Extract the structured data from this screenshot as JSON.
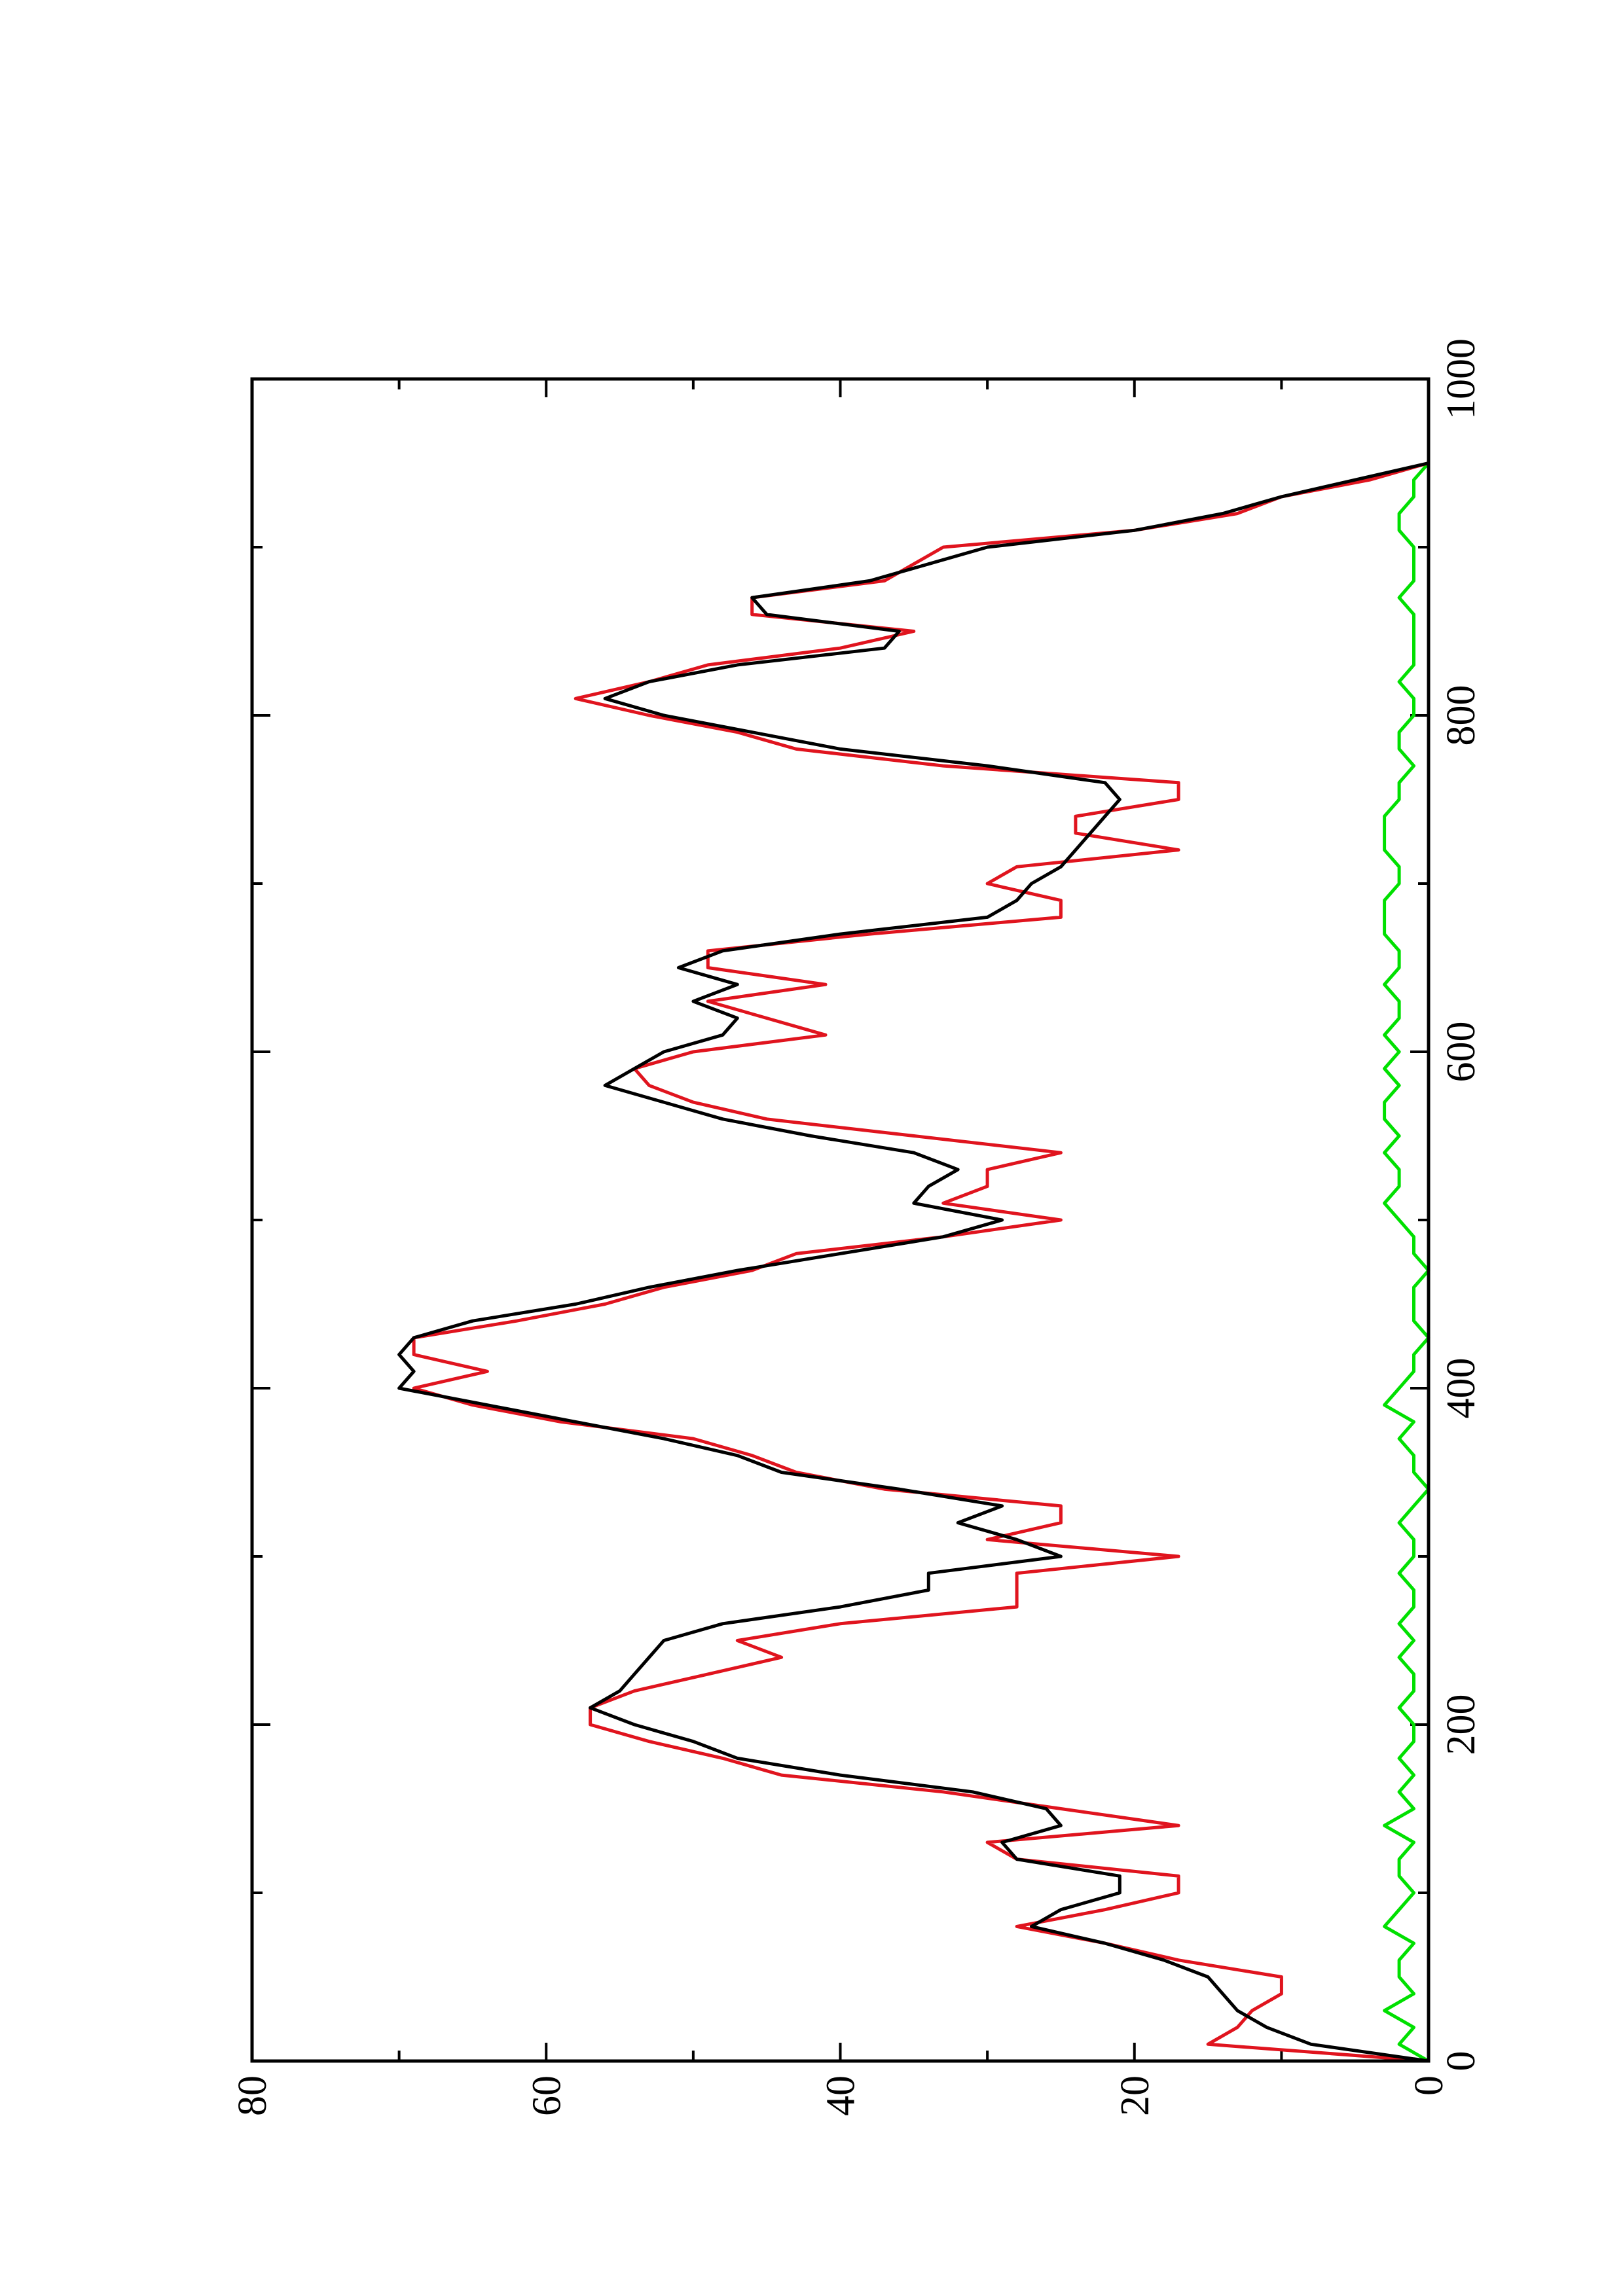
{
  "chart_data": {
    "type": "line",
    "x": [
      0,
      10,
      20,
      30,
      40,
      50,
      60,
      70,
      80,
      90,
      100,
      110,
      120,
      130,
      140,
      150,
      160,
      170,
      180,
      190,
      200,
      210,
      220,
      230,
      240,
      250,
      260,
      270,
      280,
      290,
      300,
      310,
      320,
      330,
      340,
      350,
      360,
      370,
      380,
      390,
      400,
      410,
      420,
      430,
      440,
      450,
      460,
      470,
      480,
      490,
      500,
      510,
      520,
      530,
      540,
      550,
      560,
      570,
      580,
      590,
      600,
      610,
      620,
      630,
      640,
      650,
      660,
      670,
      680,
      690,
      700,
      710,
      720,
      730,
      740,
      750,
      760,
      770,
      780,
      790,
      800,
      810,
      820,
      830,
      840,
      850,
      860,
      870,
      880,
      890,
      900,
      910,
      920,
      930,
      940,
      950
    ],
    "series": [
      {
        "color": "#000000",
        "values": [
          0,
          8,
          11,
          13,
          14,
          15,
          18,
          22,
          27,
          25,
          21,
          21,
          28,
          29,
          25,
          26,
          31,
          40,
          47,
          50,
          54,
          57,
          55,
          54,
          53,
          52,
          48,
          40,
          34,
          34,
          25,
          28,
          32,
          29,
          36,
          44,
          47,
          52,
          58,
          64,
          70,
          69,
          70,
          69,
          65,
          58,
          53,
          47,
          40,
          33,
          29,
          35,
          34,
          32,
          35,
          42,
          48,
          52,
          56,
          54,
          52,
          48,
          47,
          50,
          47,
          51,
          48,
          40,
          30,
          28,
          27,
          25,
          24,
          23,
          22,
          21,
          22,
          30,
          40,
          46,
          52,
          56,
          53,
          47,
          37,
          36,
          45,
          46,
          38,
          34,
          30,
          20,
          14,
          10,
          5,
          0
        ]
      },
      {
        "color": "#e0141e",
        "values": [
          0,
          15,
          13,
          12,
          10,
          10,
          17,
          22,
          28,
          22,
          17,
          17,
          28,
          30,
          17,
          25,
          33,
          44,
          48,
          53,
          57,
          57,
          54,
          49,
          44,
          47,
          40,
          28,
          28,
          28,
          17,
          30,
          25,
          25,
          37,
          43,
          46,
          50,
          59,
          65,
          69,
          64,
          69,
          69,
          62,
          56,
          52,
          46,
          43,
          33,
          25,
          33,
          30,
          30,
          25,
          35,
          45,
          50,
          53,
          54,
          50,
          41,
          45,
          49,
          41,
          49,
          49,
          38,
          25,
          25,
          30,
          28,
          17,
          24,
          24,
          17,
          17,
          33,
          43,
          47,
          53,
          58,
          53,
          49,
          40,
          35,
          46,
          46,
          37,
          35,
          33,
          20,
          13,
          10,
          4,
          0
        ]
      },
      {
        "color": "#00e000",
        "values": [
          0,
          2,
          1,
          3,
          1,
          2,
          2,
          1,
          3,
          2,
          1,
          2,
          2,
          1,
          3,
          1,
          2,
          1,
          2,
          1,
          1,
          2,
          1,
          1,
          2,
          1,
          2,
          1,
          1,
          2,
          1,
          1,
          2,
          1,
          0,
          1,
          1,
          2,
          1,
          3,
          2,
          1,
          1,
          0,
          1,
          1,
          1,
          0,
          1,
          1,
          2,
          3,
          2,
          2,
          3,
          2,
          3,
          3,
          2,
          3,
          2,
          3,
          2,
          2,
          3,
          2,
          2,
          3,
          3,
          3,
          2,
          2,
          3,
          3,
          3,
          2,
          2,
          1,
          2,
          2,
          1,
          1,
          2,
          1,
          1,
          1,
          1,
          2,
          1,
          1,
          1,
          2,
          2,
          1,
          1,
          0
        ]
      }
    ],
    "xlim": [
      0,
      1000
    ],
    "xticks": [
      0,
      200,
      400,
      600,
      800,
      1000
    ],
    "xminor_ticks": [
      100,
      300,
      500,
      700,
      900
    ],
    "ylim": [
      0,
      80
    ],
    "yticks": [
      0,
      20,
      40,
      60,
      80
    ],
    "yminor_ticks": [
      10,
      30,
      50,
      70
    ],
    "rotation": -90
  }
}
